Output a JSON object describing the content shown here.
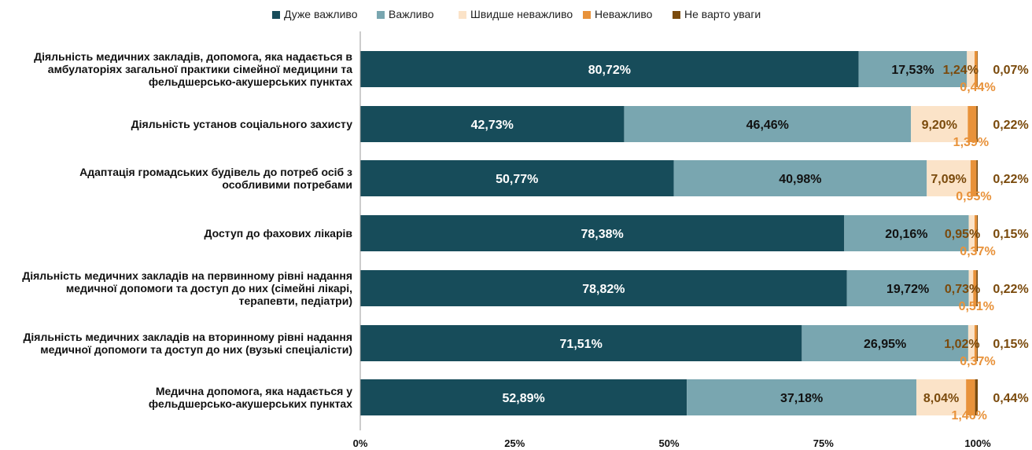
{
  "chart_data": {
    "type": "bar",
    "orientation": "horizontal",
    "stacked": true,
    "legend_position": "top",
    "xlim": [
      0,
      100
    ],
    "x_ticks": [
      "0%",
      "25%",
      "50%",
      "75%",
      "100%"
    ],
    "categories": [
      [
        "Діяльність медичних закладів, допомога, яка надається в",
        "амбулаторіях загальної практики сімейної медицини та",
        "фельдшерсько-акушерських пунктах"
      ],
      [
        "Діяльність установ соціального захисту"
      ],
      [
        "Адаптація громадських будівель до потреб осіб з",
        "особливими потребами"
      ],
      [
        "Доступ до фахових лікарів"
      ],
      [
        "Діяльність медичних закладів на первинному рівні надання",
        "медичної допомоги та доступ до них (сімейні лікарі,",
        "терапевти, педіатри)"
      ],
      [
        "Діяльність медичних закладів на вторинному рівні надання",
        "медичної допомоги та доступ до них (вузькі спеціалісти)"
      ],
      [
        "Медична допомога, яка надається у",
        "фельдшерсько-акушерських пунктах"
      ]
    ],
    "series": [
      {
        "name": "Дуже важливо",
        "color": "#174c5a",
        "values": [
          80.72,
          42.73,
          50.77,
          78.38,
          78.82,
          71.51,
          52.89
        ],
        "labels": [
          "80,72%",
          "42,73%",
          "50,77%",
          "78,38%",
          "78,82%",
          "71,51%",
          "52,89%"
        ]
      },
      {
        "name": "Важливо",
        "color": "#79a6b0",
        "values": [
          17.53,
          46.46,
          40.98,
          20.16,
          19.72,
          26.95,
          37.18
        ],
        "labels": [
          "17,53%",
          "46,46%",
          "40,98%",
          "20,16%",
          "19,72%",
          "26,95%",
          "37,18%"
        ]
      },
      {
        "name": "Швидше неважливо",
        "color": "#fbe3c8",
        "values": [
          1.24,
          9.2,
          7.09,
          0.95,
          0.73,
          1.02,
          8.04
        ],
        "labels": [
          "1,24%",
          "9,20%",
          "7,09%",
          "0,95%",
          "0,73%",
          "1,02%",
          "8,04%"
        ]
      },
      {
        "name": "Неважливо",
        "color": "#e8923a",
        "values": [
          0.44,
          1.39,
          0.95,
          0.37,
          0.51,
          0.37,
          1.46
        ],
        "labels": [
          "0,44%",
          "1,39%",
          "0,95%",
          "0,37%",
          "0,51%",
          "0,37%",
          "1,46%"
        ]
      },
      {
        "name": "Не варто уваги",
        "color": "#7a4a0c",
        "values": [
          0.07,
          0.22,
          0.22,
          0.15,
          0.22,
          0.15,
          0.44
        ],
        "labels": [
          "0,07%",
          "0,22%",
          "0,22%",
          "0,15%",
          "0,22%",
          "0,15%",
          "0,44%"
        ]
      }
    ]
  }
}
